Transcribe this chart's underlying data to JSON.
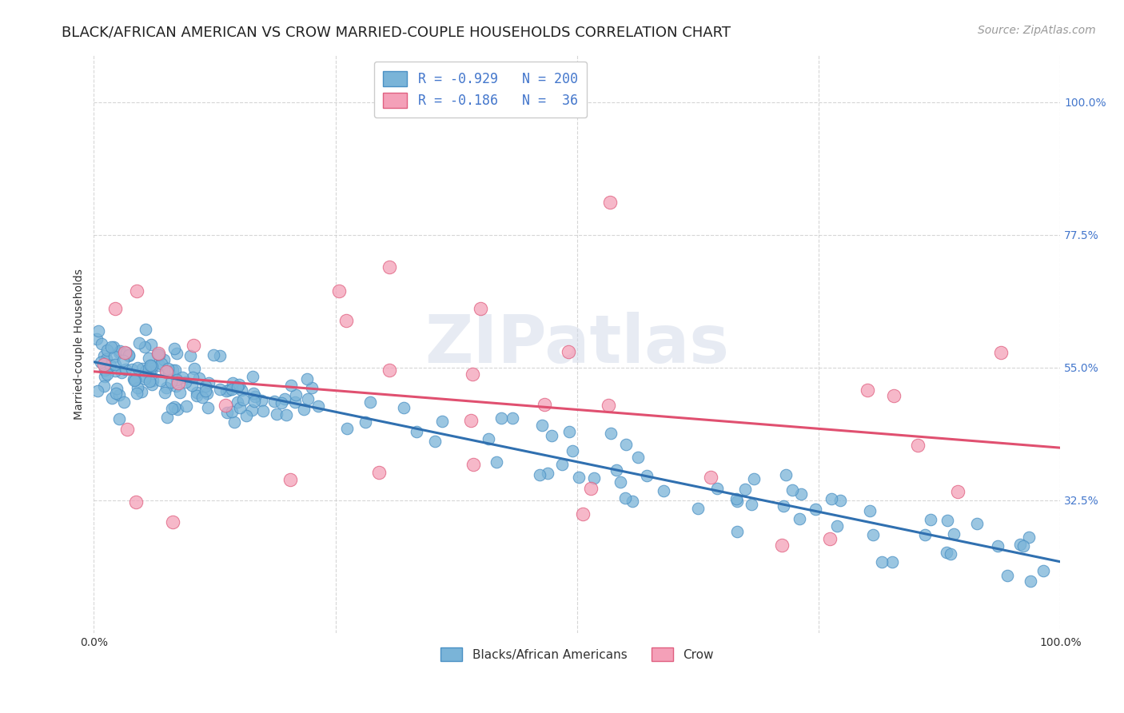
{
  "title": "BLACK/AFRICAN AMERICAN VS CROW MARRIED-COUPLE HOUSEHOLDS CORRELATION CHART",
  "source": "Source: ZipAtlas.com",
  "ylabel": "Married-couple Households",
  "ytick_labels": [
    "100.0%",
    "77.5%",
    "55.0%",
    "32.5%"
  ],
  "ytick_values": [
    1.0,
    0.775,
    0.55,
    0.325
  ],
  "xlim": [
    0.0,
    1.0
  ],
  "ylim": [
    0.1,
    1.08
  ],
  "blue_R": -0.929,
  "blue_N": 200,
  "pink_R": -0.186,
  "pink_N": 36,
  "blue_marker_color": "#7ab4d8",
  "blue_edge_color": "#4a90c4",
  "pink_marker_color": "#f4a0b8",
  "pink_edge_color": "#e06080",
  "blue_line_color": "#3070b0",
  "pink_line_color": "#e05070",
  "legend_text_color": "#4477cc",
  "watermark": "ZIPatlas",
  "background_color": "#ffffff",
  "grid_color": "#cccccc",
  "title_fontsize": 13,
  "source_fontsize": 10,
  "axis_label_fontsize": 10,
  "tick_label_color": "#4477cc",
  "tick_label_fontsize": 10,
  "legend_fontsize": 11
}
